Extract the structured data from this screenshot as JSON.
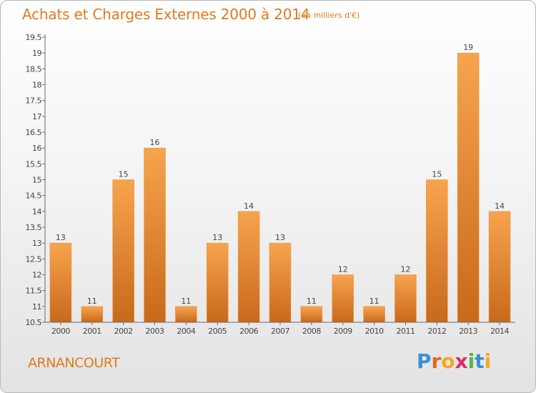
{
  "title": "Achats et Charges Externes 2000 à 2014",
  "subtitle": "(en milliers d'€)",
  "commune": "ARNANCOURT",
  "brand": {
    "letters": [
      "P",
      "r",
      "o",
      "x",
      "i",
      "t",
      "i"
    ],
    "colors": [
      "#3b8fd6",
      "#e8641b",
      "#f5a81c",
      "#d92b6b",
      "#55b542",
      "#3b8fd6",
      "#f5a81c"
    ]
  },
  "colors": {
    "accent": "#e07a1e",
    "bar_top": "#f7a44e",
    "bar_bottom": "#c8691b"
  },
  "chart_data": {
    "type": "bar",
    "categories": [
      "2000",
      "2001",
      "2002",
      "2003",
      "2004",
      "2005",
      "2006",
      "2007",
      "2008",
      "2009",
      "2010",
      "2011",
      "2012",
      "2013",
      "2014"
    ],
    "values": [
      13,
      11,
      15,
      16,
      11,
      13,
      14,
      13,
      11,
      12,
      11,
      12,
      15,
      19,
      14
    ],
    "data_labels": [
      "13",
      "11",
      "15",
      "16",
      "11",
      "13",
      "14",
      "13",
      "11",
      "12",
      "11",
      "12",
      "15",
      "19",
      "14"
    ],
    "yticks": [
      "10.5",
      "11",
      "11.5",
      "12",
      "12.5",
      "13",
      "13.5",
      "14",
      "14.5",
      "15",
      "15.5",
      "16",
      "16.5",
      "17",
      "17.5",
      "18",
      "18.5",
      "19",
      "19.5"
    ],
    "ylim": [
      10.5,
      19.5
    ],
    "grid": false,
    "xlabel": "",
    "ylabel": ""
  }
}
